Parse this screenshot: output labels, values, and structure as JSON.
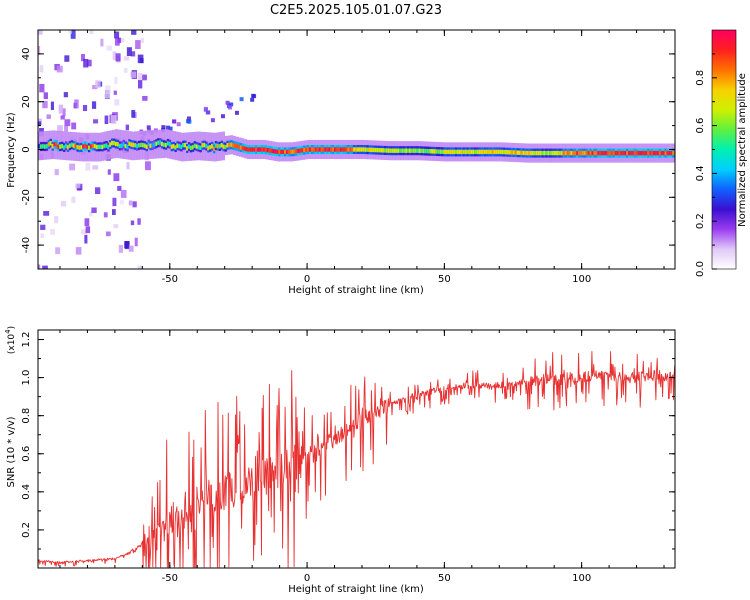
{
  "title": "C2E5.2025.105.01.07.G23",
  "chart_data": [
    {
      "type": "heatmap",
      "xlabel": "Height of straight line (km)",
      "ylabel": "Frequency (Hz)",
      "x_ticks": [
        "-50",
        "0",
        "50",
        "100"
      ],
      "y_ticks": [
        "-40",
        "-20",
        "0",
        "20",
        "40"
      ],
      "xlim": [
        -98,
        134
      ],
      "ylim": [
        -50,
        50
      ],
      "colorbar": {
        "label": "Normalized spectral amplitude",
        "ticks": [
          "0.0",
          "0.2",
          "0.4",
          "0.6",
          "0.8"
        ],
        "range": [
          0,
          1
        ],
        "colors": [
          "#ffffff",
          "#e0c8f8",
          "#9a3cf0",
          "#3a10d0",
          "#1060ff",
          "#00d0ff",
          "#00f0b0",
          "#60f040",
          "#d0f000",
          "#f8d000",
          "#ff7000",
          "#ff2020",
          "#ff0060"
        ]
      },
      "ridge": [
        {
          "x": -98,
          "f": 1.5,
          "a": 0.4
        },
        {
          "x": -93,
          "f": 2.0,
          "a": 0.9
        },
        {
          "x": -88,
          "f": 1.5,
          "a": 0.55
        },
        {
          "x": -82,
          "f": 1.0,
          "a": 0.85
        },
        {
          "x": -76,
          "f": 1.0,
          "a": 0.7
        },
        {
          "x": -70,
          "f": 2.5,
          "a": 0.55
        },
        {
          "x": -64,
          "f": 1.5,
          "a": 0.6
        },
        {
          "x": -58,
          "f": 2.0,
          "a": 0.55
        },
        {
          "x": -52,
          "f": 2.5,
          "a": 0.6
        },
        {
          "x": -46,
          "f": 1.0,
          "a": 0.55
        },
        {
          "x": -40,
          "f": 1.5,
          "a": 0.6
        },
        {
          "x": -34,
          "f": 1.0,
          "a": 0.65
        },
        {
          "x": -28,
          "f": 2.0,
          "a": 0.75
        },
        {
          "x": -22,
          "f": 0.0,
          "a": 0.9
        },
        {
          "x": -16,
          "f": 0.0,
          "a": 0.95
        },
        {
          "x": -11,
          "f": -1.0,
          "a": 0.92
        },
        {
          "x": -6,
          "f": -1.0,
          "a": 0.88
        },
        {
          "x": 0,
          "f": 0.0,
          "a": 0.9
        },
        {
          "x": 6,
          "f": 0.0,
          "a": 0.92
        },
        {
          "x": 12,
          "f": 0.0,
          "a": 0.9
        },
        {
          "x": 20,
          "f": 0.0,
          "a": 0.7
        },
        {
          "x": 30,
          "f": -0.5,
          "a": 0.6
        },
        {
          "x": 40,
          "f": -0.5,
          "a": 0.62
        },
        {
          "x": 50,
          "f": -1.0,
          "a": 0.65
        },
        {
          "x": 60,
          "f": -1.0,
          "a": 0.68
        },
        {
          "x": 70,
          "f": -1.0,
          "a": 0.72
        },
        {
          "x": 80,
          "f": -1.5,
          "a": 0.75
        },
        {
          "x": 88,
          "f": -1.5,
          "a": 0.6
        },
        {
          "x": 95,
          "f": -1.5,
          "a": 0.82
        },
        {
          "x": 105,
          "f": -1.5,
          "a": 0.88
        },
        {
          "x": 115,
          "f": -1.5,
          "a": 0.9
        },
        {
          "x": 125,
          "f": -1.5,
          "a": 0.9
        },
        {
          "x": 134,
          "f": -1.5,
          "a": 0.9
        }
      ]
    },
    {
      "type": "line",
      "xlabel": "Height of straight line (km)",
      "ylabel": "SNR (10 * v/v)",
      "y_multiplier": "(x10",
      "y_multiplier_exp": "4",
      "y_multiplier_close": ")",
      "x_ticks": [
        "-50",
        "0",
        "50",
        "100"
      ],
      "y_ticks": [
        "0.2",
        "0.4",
        "0.6",
        "0.8",
        "1.0",
        "1.2"
      ],
      "xlim": [
        -98,
        134
      ],
      "ylim": [
        0,
        1.25
      ],
      "color": "#e83030",
      "x": [
        -98,
        -90,
        -80,
        -70,
        -65,
        -60,
        -55,
        -50,
        -45,
        -40,
        -35,
        -30,
        -25,
        -20,
        -15,
        -10,
        -5,
        0,
        5,
        10,
        15,
        20,
        25,
        30,
        35,
        40,
        45,
        50,
        55,
        60,
        65,
        70,
        75,
        80,
        85,
        90,
        95,
        100,
        105,
        110,
        115,
        120,
        125,
        130,
        134
      ],
      "y": [
        0.04,
        0.03,
        0.04,
        0.05,
        0.08,
        0.13,
        0.19,
        0.26,
        0.3,
        0.34,
        0.37,
        0.4,
        0.42,
        0.45,
        0.49,
        0.52,
        0.55,
        0.58,
        0.63,
        0.68,
        0.73,
        0.78,
        0.83,
        0.86,
        0.88,
        0.91,
        0.93,
        0.94,
        0.95,
        0.96,
        0.96,
        0.96,
        0.97,
        0.98,
        0.99,
        0.99,
        1.0,
        1.0,
        1.01,
        1.0,
        1.0,
        1.0,
        1.01,
        1.01,
        1.02
      ]
    }
  ]
}
